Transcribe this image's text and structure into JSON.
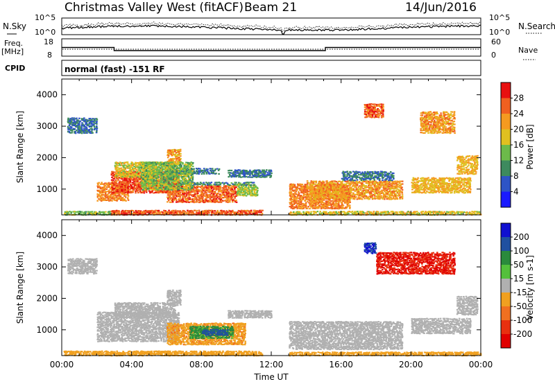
{
  "header": {
    "title": "Christmas Valley West (fitACF)",
    "beam": "Beam 21",
    "date": "14/Jun/2016"
  },
  "strips": {
    "nsky_label": "N.Sky",
    "nsky_ticks": [
      "10^5",
      "10^0"
    ],
    "nsearch_label": "N.Search",
    "nsearch_ticks": [
      "10^5",
      "10^0"
    ],
    "freq_label_1": "Freq.",
    "freq_label_2": "[MHz]",
    "freq_ticks": [
      "18",
      "8"
    ],
    "nave_label": "Nave",
    "nave_ticks": [
      "60",
      "0"
    ],
    "cpid_label": "CPID",
    "cpid_text": "normal (fast) -151 RF",
    "freq_steps": [
      {
        "from": 0,
        "to": 3.0,
        "level": 0.5
      },
      {
        "from": 3.0,
        "to": 12.7,
        "level": 0.32
      },
      {
        "from": 12.7,
        "to": 15.1,
        "level": 0.32
      },
      {
        "from": 15.1,
        "to": 24,
        "level": 0.5
      }
    ]
  },
  "chart_data": [
    {
      "type": "heatmap",
      "name": "power",
      "ylabel": "Slant Range [km]",
      "ylim": [
        180,
        4500
      ],
      "yticks": [
        1000,
        2000,
        3000,
        4000
      ],
      "xlim": [
        0,
        24
      ],
      "colorbar": {
        "label": "Power [dB]",
        "ticks": [
          "4",
          "8",
          "12",
          "16",
          "20",
          "24",
          "28"
        ],
        "range": [
          0,
          32
        ],
        "colors": [
          "#1a1aff",
          "#2e54c6",
          "#3d8a5e",
          "#6cba4a",
          "#e0c020",
          "#f59a20",
          "#f06020",
          "#e81010"
        ]
      },
      "regions": [
        {
          "t0": 0.1,
          "t1": 2.8,
          "r0": 200,
          "r1": 330,
          "v": 14
        },
        {
          "t0": 2.8,
          "t1": 11.5,
          "r0": 200,
          "r1": 360,
          "v": 26
        },
        {
          "t0": 13.0,
          "t1": 24.0,
          "r0": 200,
          "r1": 330,
          "v": 18
        },
        {
          "t0": 2.0,
          "t1": 3.8,
          "r0": 650,
          "r1": 1250,
          "v": 24
        },
        {
          "t0": 2.8,
          "t1": 6.7,
          "r0": 900,
          "r1": 1600,
          "v": 27
        },
        {
          "t0": 3.0,
          "t1": 6.5,
          "r0": 1400,
          "r1": 1900,
          "v": 18
        },
        {
          "t0": 6.0,
          "t1": 6.8,
          "r0": 1800,
          "r1": 2300,
          "v": 22
        },
        {
          "t0": 6.0,
          "t1": 10.0,
          "r0": 600,
          "r1": 1150,
          "v": 26
        },
        {
          "t0": 10.0,
          "t1": 11.2,
          "r0": 800,
          "r1": 1200,
          "v": 16
        },
        {
          "t0": 7.0,
          "t1": 11.0,
          "r0": 1150,
          "r1": 1260,
          "v": 10
        },
        {
          "t0": 6.5,
          "t1": 9.0,
          "r0": 1500,
          "r1": 1700,
          "v": 8
        },
        {
          "t0": 9.5,
          "t1": 12.0,
          "r0": 1400,
          "r1": 1650,
          "v": 8
        },
        {
          "t0": 13.0,
          "t1": 16.5,
          "r0": 400,
          "r1": 1200,
          "v": 24
        },
        {
          "t0": 14.0,
          "t1": 19.5,
          "r0": 700,
          "r1": 1300,
          "v": 22
        },
        {
          "t0": 16.0,
          "t1": 19.0,
          "r0": 1300,
          "r1": 1600,
          "v": 8
        },
        {
          "t0": 20.0,
          "t1": 23.4,
          "r0": 900,
          "r1": 1400,
          "v": 20
        },
        {
          "t0": 22.6,
          "t1": 23.8,
          "r0": 1500,
          "r1": 2100,
          "v": 20
        },
        {
          "t0": 17.3,
          "t1": 18.4,
          "r0": 3300,
          "r1": 3750,
          "v": 26
        },
        {
          "t0": 20.5,
          "t1": 22.5,
          "r0": 2800,
          "r1": 3500,
          "v": 22
        },
        {
          "t0": 0.3,
          "t1": 2.0,
          "r0": 2800,
          "r1": 3300,
          "v": 8
        },
        {
          "t0": 4.5,
          "t1": 7.5,
          "r0": 1000,
          "r1": 1900,
          "v": 14
        }
      ]
    },
    {
      "type": "heatmap",
      "name": "velocity",
      "ylabel": "Slant Range [km]",
      "xlabel": "Time UT",
      "ylim": [
        180,
        4500
      ],
      "yticks": [
        1000,
        2000,
        3000,
        4000
      ],
      "xlim": [
        0,
        24
      ],
      "xticks": [
        "00:00",
        "04:00",
        "08:00",
        "12:00",
        "16:00",
        "20:00",
        "00:00"
      ],
      "colorbar": {
        "label": "Velocity [m s-1]",
        "ticks": [
          "200",
          "100",
          "50",
          "15",
          "-15",
          "-50",
          "-100",
          "-200"
        ],
        "colors": [
          "#1010d0",
          "#2050a0",
          "#2a8a3c",
          "#54c03c",
          "#b0b0b0",
          "#f0a020",
          "#f07020",
          "#e83010",
          "#e00000"
        ]
      },
      "regions": [
        {
          "t0": 0.1,
          "t1": 11.5,
          "r0": 200,
          "r1": 360,
          "v": -30
        },
        {
          "t0": 13.0,
          "t1": 24.0,
          "r0": 200,
          "r1": 330,
          "v": -30
        },
        {
          "t0": 2.0,
          "t1": 6.7,
          "r0": 650,
          "r1": 1600,
          "v": 0
        },
        {
          "t0": 3.0,
          "t1": 6.5,
          "r0": 1400,
          "r1": 1900,
          "v": 0
        },
        {
          "t0": 6.0,
          "t1": 6.8,
          "r0": 1800,
          "r1": 2300,
          "v": 0
        },
        {
          "t0": 6.0,
          "t1": 10.5,
          "r0": 550,
          "r1": 1250,
          "v": -40
        },
        {
          "t0": 7.3,
          "t1": 9.8,
          "r0": 750,
          "r1": 1150,
          "v": 60
        },
        {
          "t0": 8.0,
          "t1": 9.5,
          "r0": 850,
          "r1": 1050,
          "v": 120
        },
        {
          "t0": 13.0,
          "t1": 19.5,
          "r0": 400,
          "r1": 1300,
          "v": 0
        },
        {
          "t0": 20.0,
          "t1": 23.4,
          "r0": 900,
          "r1": 1400,
          "v": 0
        },
        {
          "t0": 22.6,
          "t1": 23.8,
          "r0": 1500,
          "r1": 2100,
          "v": 0
        },
        {
          "t0": 17.3,
          "t1": 18.0,
          "r0": 3450,
          "r1": 3800,
          "v": 200
        },
        {
          "t0": 18.0,
          "t1": 22.5,
          "r0": 2800,
          "r1": 3500,
          "v": -200
        },
        {
          "t0": 0.3,
          "t1": 2.0,
          "r0": 2800,
          "r1": 3300,
          "v": 0
        },
        {
          "t0": 9.5,
          "t1": 12.0,
          "r0": 1400,
          "r1": 1650,
          "v": 0
        }
      ]
    }
  ]
}
